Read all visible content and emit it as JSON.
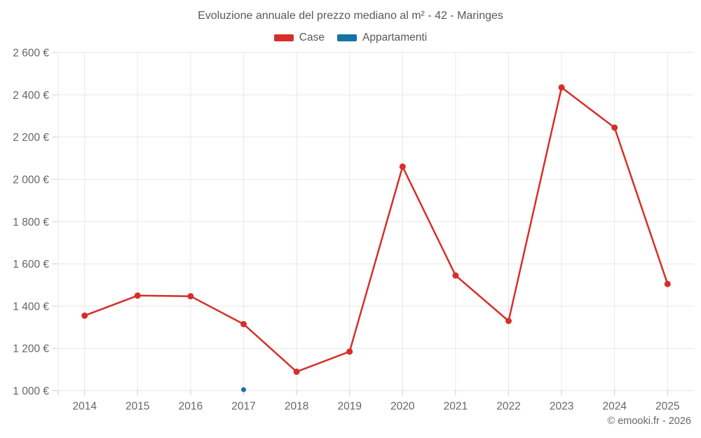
{
  "header": {
    "title": "Evoluzione annuale del prezzo mediano al m² - 42 - Maringes"
  },
  "footer": {
    "credit": "© emooki.fr - 2026"
  },
  "chart_data": {
    "type": "line",
    "title": "Evoluzione annuale del prezzo mediano al m² - 42 - Maringes",
    "x": [
      2014,
      2015,
      2016,
      2017,
      2018,
      2019,
      2020,
      2021,
      2022,
      2023,
      2024,
      2025
    ],
    "xtick_labels": [
      "2014",
      "2015",
      "2016",
      "2017",
      "2018",
      "2019",
      "2020",
      "2021",
      "2022",
      "2023",
      "2024",
      "2025"
    ],
    "series": [
      {
        "name": "Case",
        "color": "#d62f29",
        "values": [
          1355,
          1450,
          1447,
          1315,
          1090,
          1185,
          2060,
          1545,
          1330,
          2435,
          2245,
          1505
        ]
      },
      {
        "name": "Appartamenti",
        "color": "#1673a2",
        "values": [
          null,
          null,
          null,
          1005,
          null,
          null,
          null,
          null,
          null,
          null,
          null,
          null
        ]
      }
    ],
    "ylabel": "",
    "xlabel": "",
    "ylim": [
      1000,
      2600
    ],
    "ytick_step": 200,
    "ytick_labels": [
      "1 000 €",
      "1 200 €",
      "1 400 €",
      "1 600 €",
      "1 800 €",
      "2 000 €",
      "2 200 €",
      "2 400 €",
      "2 600 €"
    ],
    "grid": true,
    "legend_position": "top",
    "grid_color": "#e7e7e7",
    "tick_color": "#cccccc",
    "axis_label_color": "#666666"
  }
}
